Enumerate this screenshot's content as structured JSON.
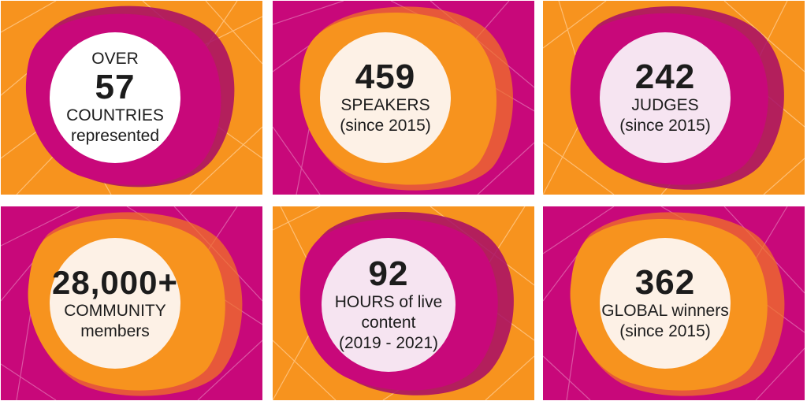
{
  "colors": {
    "orange": "#F7931E",
    "magenta": "#C8087A",
    "deep_magenta": "#A70A67",
    "bright_orange": "#F37B20",
    "cream": "#FDF1E6",
    "lavender": "#F6E4F1",
    "white": "#FFFFFF"
  },
  "stats": [
    {
      "top": "OVER",
      "number": "57",
      "lines": [
        "COUNTRIES",
        "represented"
      ]
    },
    {
      "number": "459",
      "lines": [
        "SPEAKERS",
        "(since 2015)"
      ]
    },
    {
      "number": "242",
      "lines": [
        "JUDGES",
        "(since 2015)"
      ]
    },
    {
      "number": "28,000+",
      "lines": [
        "COMMUNITY",
        "members"
      ]
    },
    {
      "number": "92",
      "lines": [
        "HOURS of live",
        "content",
        "(2019 - 2021)"
      ]
    },
    {
      "number": "362",
      "lines": [
        "GLOBAL winners",
        "(since 2015)"
      ]
    }
  ]
}
